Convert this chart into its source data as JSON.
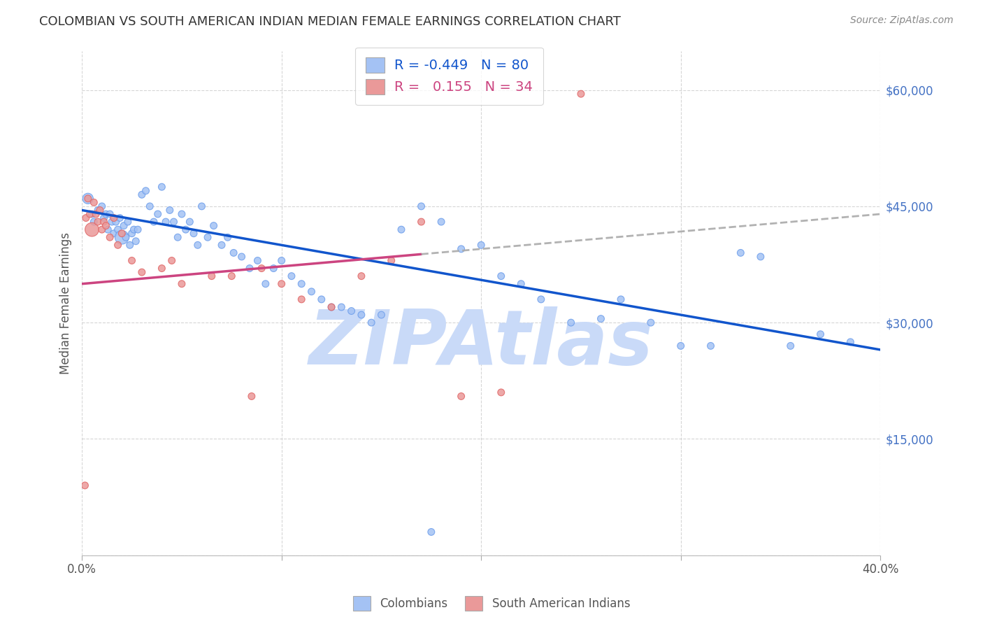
{
  "title": "COLOMBIAN VS SOUTH AMERICAN INDIAN MEDIAN FEMALE EARNINGS CORRELATION CHART",
  "source": "Source: ZipAtlas.com",
  "ylabel": "Median Female Earnings",
  "yticks": [
    0,
    15000,
    30000,
    45000,
    60000
  ],
  "ytick_labels": [
    "",
    "$15,000",
    "$30,000",
    "$45,000",
    "$60,000"
  ],
  "xlim": [
    0.0,
    40.0
  ],
  "ylim": [
    0,
    65000
  ],
  "colombians_R": "-0.449",
  "colombians_N": "80",
  "sa_indians_R": "0.155",
  "sa_indians_N": "34",
  "blue_color": "#a4c2f4",
  "blue_edge_color": "#6d9eeb",
  "pink_color": "#ea9999",
  "pink_edge_color": "#e06666",
  "blue_line_color": "#1155cc",
  "pink_line_color": "#cc4480",
  "pink_dash_color": "#aaaaaa",
  "watermark": "ZIPAtlas",
  "watermark_color": "#c9daf8",
  "colombians_x": [
    0.3,
    0.5,
    0.6,
    0.8,
    1.0,
    1.1,
    1.2,
    1.3,
    1.4,
    1.5,
    1.6,
    1.7,
    1.8,
    1.9,
    2.0,
    2.1,
    2.2,
    2.3,
    2.4,
    2.5,
    2.6,
    2.7,
    2.8,
    3.0,
    3.2,
    3.4,
    3.6,
    3.8,
    4.0,
    4.2,
    4.4,
    4.6,
    4.8,
    5.0,
    5.2,
    5.4,
    5.6,
    5.8,
    6.0,
    6.3,
    6.6,
    7.0,
    7.3,
    7.6,
    8.0,
    8.4,
    8.8,
    9.2,
    9.6,
    10.0,
    10.5,
    11.0,
    11.5,
    12.0,
    12.5,
    13.0,
    13.5,
    14.0,
    14.5,
    15.0,
    16.0,
    17.0,
    18.0,
    19.0,
    20.0,
    21.0,
    22.0,
    23.0,
    24.5,
    26.0,
    27.0,
    28.5,
    30.0,
    31.5,
    33.0,
    34.0,
    35.5,
    37.0,
    38.5,
    17.5
  ],
  "colombians_y": [
    46000,
    44000,
    43000,
    44500,
    45000,
    43500,
    44000,
    42000,
    44000,
    43000,
    41500,
    43000,
    42000,
    43500,
    41000,
    42500,
    41000,
    43000,
    40000,
    41500,
    42000,
    40500,
    42000,
    46500,
    47000,
    45000,
    43000,
    44000,
    47500,
    43000,
    44500,
    43000,
    41000,
    44000,
    42000,
    43000,
    41500,
    40000,
    45000,
    41000,
    42500,
    40000,
    41000,
    39000,
    38500,
    37000,
    38000,
    35000,
    37000,
    38000,
    36000,
    35000,
    34000,
    33000,
    32000,
    32000,
    31500,
    31000,
    30000,
    31000,
    42000,
    45000,
    43000,
    39500,
    40000,
    36000,
    35000,
    33000,
    30000,
    30500,
    33000,
    30000,
    27000,
    27000,
    39000,
    38500,
    27000,
    28500,
    27500,
    3000
  ],
  "colombians_size": [
    120,
    50,
    50,
    50,
    50,
    50,
    50,
    50,
    50,
    50,
    50,
    50,
    50,
    50,
    200,
    50,
    50,
    50,
    50,
    50,
    50,
    50,
    50,
    50,
    50,
    50,
    50,
    50,
    50,
    50,
    50,
    50,
    50,
    50,
    50,
    50,
    50,
    50,
    50,
    50,
    50,
    50,
    50,
    50,
    50,
    50,
    50,
    50,
    50,
    50,
    50,
    50,
    50,
    50,
    50,
    50,
    50,
    50,
    50,
    50,
    50,
    50,
    50,
    50,
    50,
    50,
    50,
    50,
    50,
    50,
    50,
    50,
    50,
    50,
    50,
    50,
    50,
    50,
    50,
    50
  ],
  "sa_indians_x": [
    0.2,
    0.3,
    0.4,
    0.5,
    0.6,
    0.7,
    0.8,
    0.9,
    1.0,
    1.1,
    1.2,
    1.4,
    1.6,
    1.8,
    2.0,
    2.5,
    3.0,
    4.0,
    5.0,
    6.5,
    7.5,
    9.0,
    10.0,
    11.0,
    12.5,
    14.0,
    15.5,
    17.0,
    19.0,
    21.0,
    0.15,
    4.5,
    8.5,
    25.0
  ],
  "sa_indians_y": [
    43500,
    46000,
    44000,
    42000,
    45500,
    44000,
    43000,
    44500,
    42000,
    43000,
    42500,
    41000,
    43500,
    40000,
    41500,
    38000,
    36500,
    37000,
    35000,
    36000,
    36000,
    37000,
    35000,
    33000,
    32000,
    36000,
    38000,
    43000,
    20500,
    21000,
    9000,
    38000,
    20500,
    59500
  ],
  "sa_indians_size": [
    50,
    50,
    50,
    200,
    50,
    50,
    50,
    50,
    50,
    50,
    50,
    50,
    50,
    50,
    50,
    50,
    50,
    50,
    50,
    50,
    50,
    50,
    50,
    50,
    50,
    50,
    50,
    50,
    50,
    50,
    50,
    50,
    50,
    50
  ],
  "trend_blue_x0": 0,
  "trend_blue_x1": 40,
  "trend_blue_y0": 44500,
  "trend_blue_y1": 26500,
  "trend_pink_solid_x0": 0,
  "trend_pink_solid_x1": 17,
  "trend_pink_dashed_x0": 17,
  "trend_pink_dashed_x1": 40,
  "trend_pink_y0": 35000,
  "trend_pink_y1": 44000
}
